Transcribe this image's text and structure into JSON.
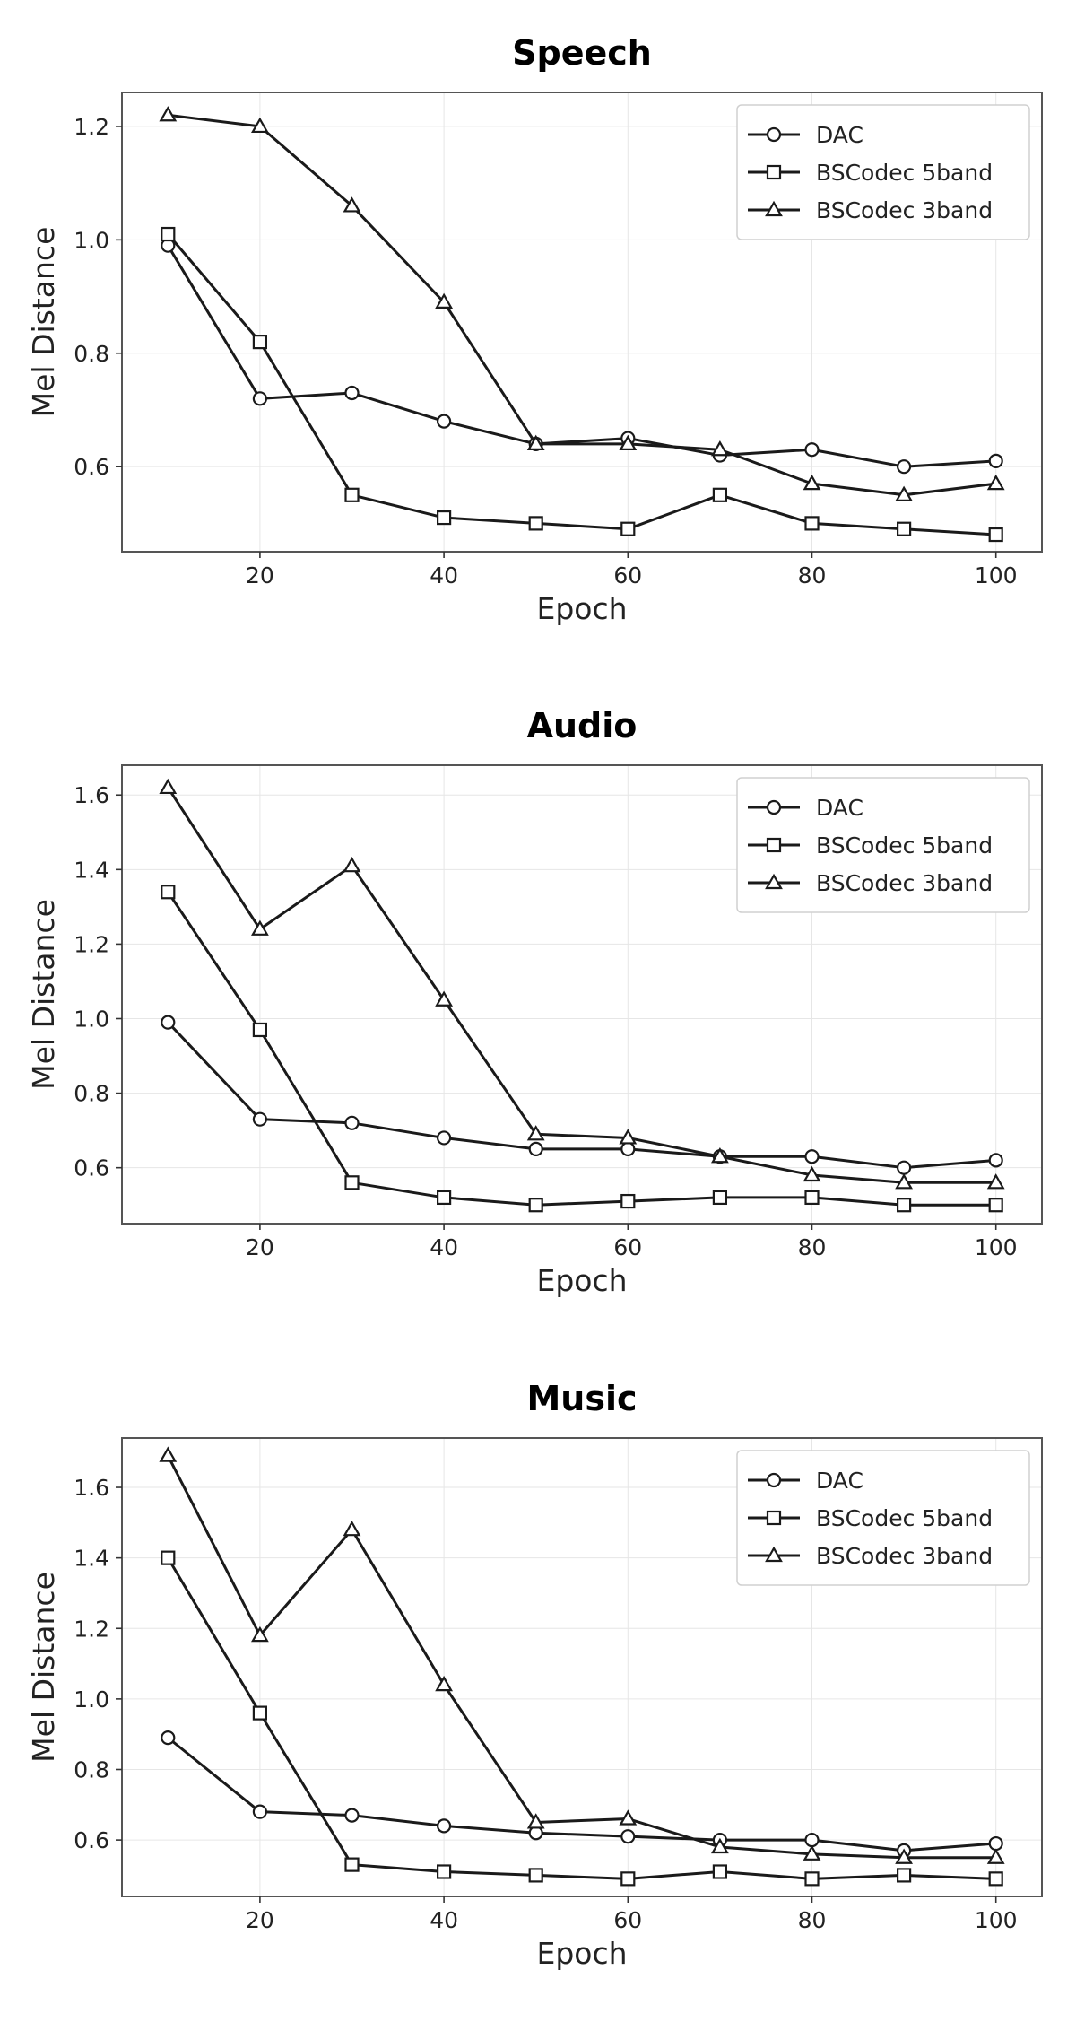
{
  "chart_data": [
    {
      "type": "line",
      "title": "Speech",
      "xlabel": "Epoch",
      "ylabel": "Mel Distance",
      "x": [
        10,
        20,
        30,
        40,
        50,
        60,
        70,
        80,
        90,
        100
      ],
      "xlim": [
        5,
        105
      ],
      "ylim": [
        0.45,
        1.26
      ],
      "xticks": [
        20,
        40,
        60,
        80,
        100
      ],
      "yticks": [
        0.6,
        0.8,
        1.0,
        1.2
      ],
      "ytick_labels": [
        "0.6",
        "0.8",
        "1.0",
        "1.2"
      ],
      "grid": true,
      "legend_position": "top-right",
      "series": [
        {
          "name": "DAC",
          "marker": "circle",
          "values": [
            0.99,
            0.72,
            0.73,
            0.68,
            0.64,
            0.65,
            0.62,
            0.63,
            0.6,
            0.61
          ]
        },
        {
          "name": "BSCodec 5band",
          "marker": "square",
          "values": [
            1.01,
            0.82,
            0.55,
            0.51,
            0.5,
            0.49,
            0.55,
            0.5,
            0.49,
            0.48
          ]
        },
        {
          "name": "BSCodec 3band",
          "marker": "triangle",
          "values": [
            1.22,
            1.2,
            1.06,
            0.89,
            0.64,
            0.64,
            0.63,
            0.57,
            0.55,
            0.57
          ]
        }
      ]
    },
    {
      "type": "line",
      "title": "Audio",
      "xlabel": "Epoch",
      "ylabel": "Mel Distance",
      "x": [
        10,
        20,
        30,
        40,
        50,
        60,
        70,
        80,
        90,
        100
      ],
      "xlim": [
        5,
        105
      ],
      "ylim": [
        0.45,
        1.68
      ],
      "xticks": [
        20,
        40,
        60,
        80,
        100
      ],
      "yticks": [
        0.6,
        0.8,
        1.0,
        1.2,
        1.4,
        1.6
      ],
      "ytick_labels": [
        "0.6",
        "0.8",
        "1.0",
        "1.2",
        "1.4",
        "1.6"
      ],
      "grid": true,
      "legend_position": "top-right",
      "series": [
        {
          "name": "DAC",
          "marker": "circle",
          "values": [
            0.99,
            0.73,
            0.72,
            0.68,
            0.65,
            0.65,
            0.63,
            0.63,
            0.6,
            0.62
          ]
        },
        {
          "name": "BSCodec 5band",
          "marker": "square",
          "values": [
            1.34,
            0.97,
            0.56,
            0.52,
            0.5,
            0.51,
            0.52,
            0.52,
            0.5,
            0.5
          ]
        },
        {
          "name": "BSCodec 3band",
          "marker": "triangle",
          "values": [
            1.62,
            1.24,
            1.41,
            1.05,
            0.69,
            0.68,
            0.63,
            0.58,
            0.56,
            0.56
          ]
        }
      ]
    },
    {
      "type": "line",
      "title": "Music",
      "xlabel": "Epoch",
      "ylabel": "Mel Distance",
      "x": [
        10,
        20,
        30,
        40,
        50,
        60,
        70,
        80,
        90,
        100
      ],
      "xlim": [
        5,
        105
      ],
      "ylim": [
        0.44,
        1.74
      ],
      "xticks": [
        20,
        40,
        60,
        80,
        100
      ],
      "yticks": [
        0.6,
        0.8,
        1.0,
        1.2,
        1.4,
        1.6
      ],
      "ytick_labels": [
        "0.6",
        "0.8",
        "1.0",
        "1.2",
        "1.4",
        "1.6"
      ],
      "grid": true,
      "legend_position": "top-right",
      "series": [
        {
          "name": "DAC",
          "marker": "circle",
          "values": [
            0.89,
            0.68,
            0.67,
            0.64,
            0.62,
            0.61,
            0.6,
            0.6,
            0.57,
            0.59
          ]
        },
        {
          "name": "BSCodec 5band",
          "marker": "square",
          "values": [
            1.4,
            0.96,
            0.53,
            0.51,
            0.5,
            0.49,
            0.51,
            0.49,
            0.5,
            0.49
          ]
        },
        {
          "name": "BSCodec 3band",
          "marker": "triangle",
          "values": [
            1.69,
            1.18,
            1.48,
            1.04,
            0.65,
            0.66,
            0.58,
            0.56,
            0.55,
            0.55
          ]
        }
      ]
    }
  ]
}
